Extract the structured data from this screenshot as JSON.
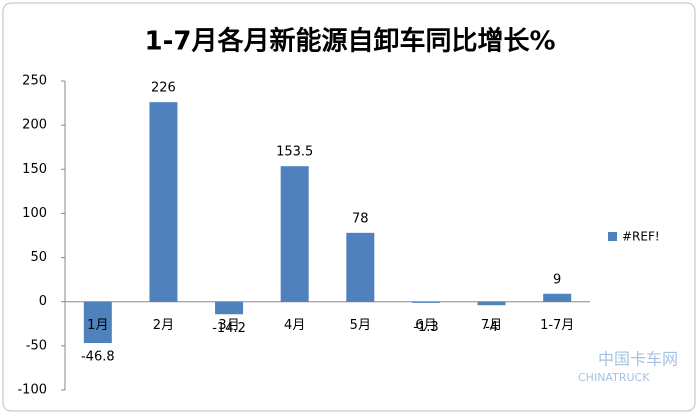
{
  "chart_data": {
    "type": "bar",
    "title": "1-7月各月新能源自卸车同比增长%",
    "categories": [
      "1月",
      "2月",
      "3月",
      "4月",
      "5月",
      "6月",
      "7月",
      "1-7月"
    ],
    "series": [
      {
        "name": "#REF!",
        "color": "#4f81bd",
        "values": [
          -46.8,
          226,
          -14.2,
          153.5,
          78,
          -1.3,
          -4,
          9
        ]
      }
    ],
    "ylim": [
      -100,
      250
    ],
    "yticks": [
      -100,
      -50,
      0,
      50,
      100,
      150,
      200,
      250
    ],
    "legend": "right",
    "watermark": [
      "中国卡车网",
      "CHINATRUCK"
    ]
  }
}
